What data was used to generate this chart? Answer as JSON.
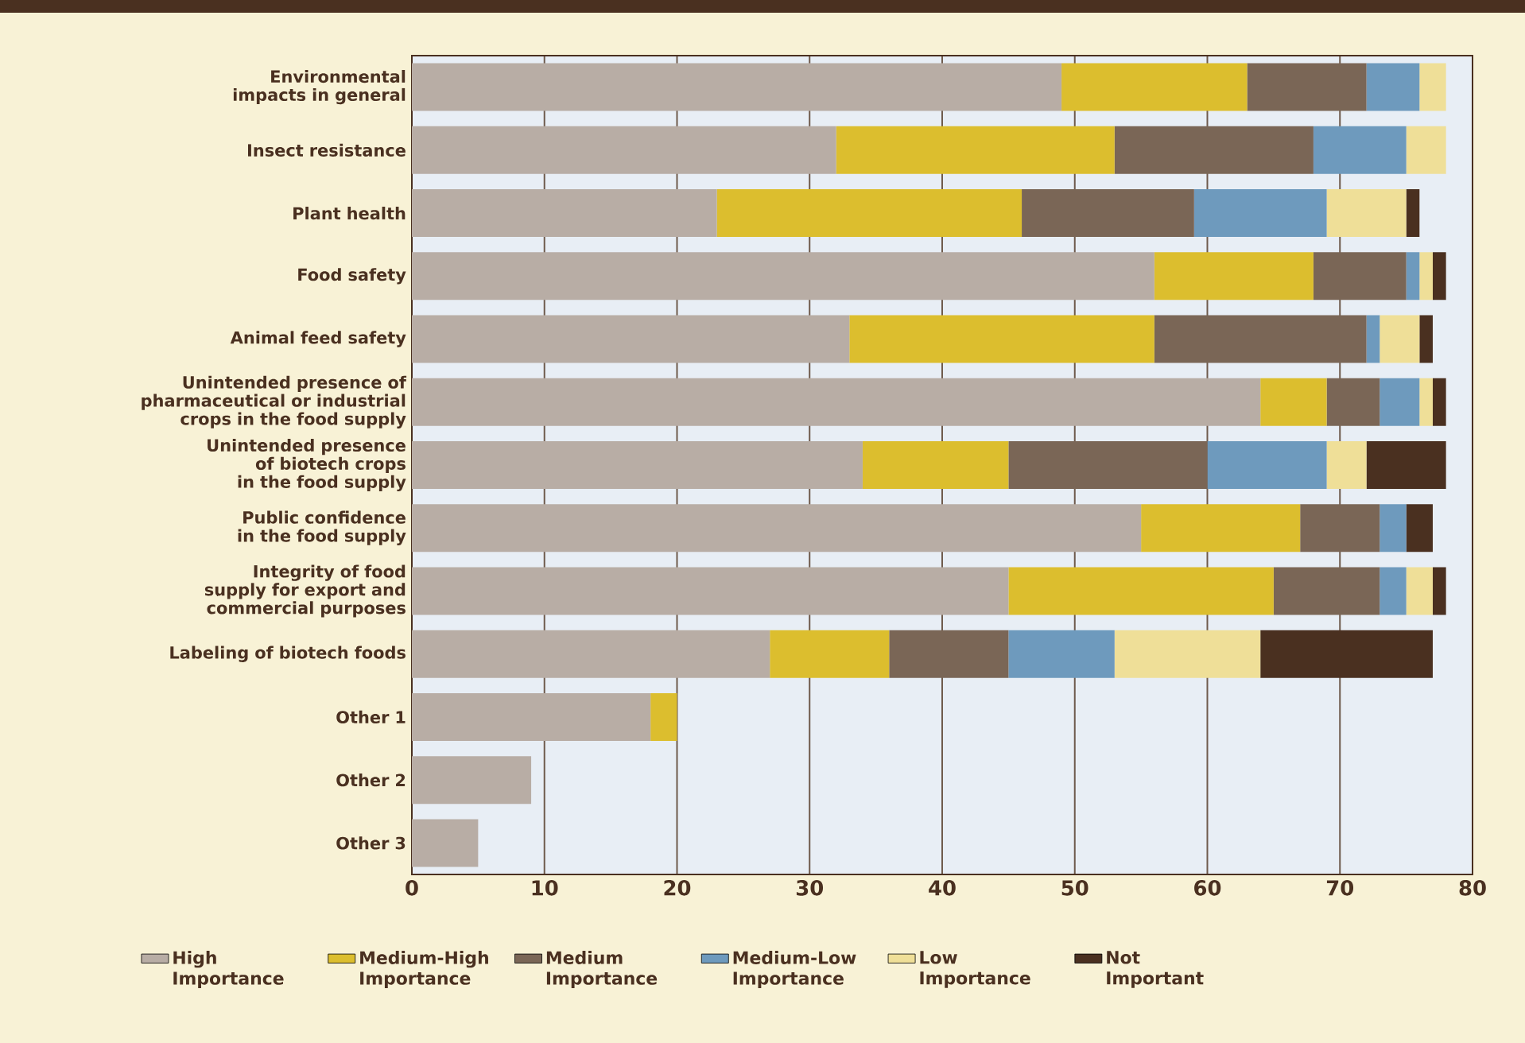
{
  "chart_data": {
    "type": "bar",
    "orientation": "horizontal",
    "stacked": true,
    "categories": [
      "Environmental impacts in general",
      "Insect resistance",
      "Plant health",
      "Food safety",
      "Animal feed safety",
      "Unintended presence of pharmaceutical or industrial crops in the food supply",
      "Unintended presence of biotech crops in the food supply",
      "Public confidence in the food supply",
      "Integrity of food supply for export and commercial purposes",
      "Labeling of biotech foods",
      "Other 1",
      "Other 2",
      "Other 3"
    ],
    "series": [
      {
        "name": "High Importance",
        "color": "#b8ada5",
        "values": [
          49,
          32,
          23,
          56,
          33,
          64,
          34,
          55,
          45,
          27,
          18,
          9,
          5
        ]
      },
      {
        "name": "Medium-High Importance",
        "color": "#dcbe2e",
        "values": [
          14,
          21,
          23,
          12,
          23,
          5,
          11,
          12,
          20,
          9,
          2,
          0,
          0
        ]
      },
      {
        "name": "Medium Importance",
        "color": "#7a6656",
        "values": [
          9,
          15,
          13,
          7,
          16,
          4,
          15,
          6,
          8,
          9,
          0,
          0,
          0
        ]
      },
      {
        "name": "Medium-Low Importance",
        "color": "#6e9abd",
        "values": [
          4,
          7,
          10,
          1,
          1,
          3,
          9,
          2,
          2,
          8,
          0,
          0,
          0
        ]
      },
      {
        "name": "Low Importance",
        "color": "#efdf98",
        "values": [
          2,
          3,
          6,
          1,
          3,
          1,
          3,
          0,
          2,
          11,
          0,
          0,
          0
        ]
      },
      {
        "name": "Not Important",
        "color": "#4a3020",
        "values": [
          0,
          0,
          1,
          1,
          1,
          1,
          6,
          2,
          1,
          13,
          0,
          0,
          0
        ]
      }
    ],
    "xlim": [
      0,
      80
    ],
    "xticks": [
      0,
      10,
      20,
      30,
      40,
      50,
      60,
      70,
      80
    ],
    "grid": "x",
    "legend": "bottom"
  }
}
